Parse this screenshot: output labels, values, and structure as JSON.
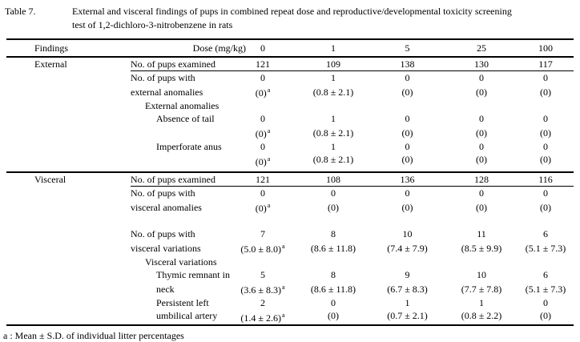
{
  "title": {
    "label": "Table 7.",
    "lines": [
      "External and visceral findings of pups in combined repeat dose and reproductive/developmental toxicity screening",
      "test of 1,2-dichloro-3-nitrobenzene in rats"
    ]
  },
  "table": {
    "header": {
      "findings": "Findings",
      "dose_label": "Dose (mg/kg)",
      "doses": [
        "0",
        "1",
        "5",
        "25",
        "100"
      ]
    },
    "footnote_marker": "a",
    "sections": [
      {
        "name": "External",
        "rows": [
          {
            "label": "No. of pups examined",
            "indent": 0,
            "rule_below": true,
            "values": [
              "121",
              "109",
              "138",
              "130",
              "117"
            ]
          },
          {
            "label": "No. of pups with",
            "indent": 0,
            "values": [
              "0",
              "1",
              "0",
              "0",
              "0"
            ]
          },
          {
            "label": "external anomalies",
            "indent": 0,
            "sup_first": true,
            "values": [
              "(0)",
              "(0.8 ± 2.1)",
              "(0)",
              "(0)",
              "(0)"
            ]
          },
          {
            "label": "External anomalies",
            "indent": 1,
            "values": [
              "",
              "",
              "",
              "",
              ""
            ]
          },
          {
            "label": "Absence of tail",
            "indent": 2,
            "values": [
              "0",
              "1",
              "0",
              "0",
              "0"
            ]
          },
          {
            "label": "",
            "indent": 0,
            "sup_first": true,
            "values": [
              "(0)",
              "(0.8 ± 2.1)",
              "(0)",
              "(0)",
              "(0)"
            ]
          },
          {
            "label": "Imperforate anus",
            "indent": 2,
            "values": [
              "0",
              "1",
              "0",
              "0",
              "0"
            ]
          },
          {
            "label": "",
            "indent": 0,
            "sup_first": true,
            "values": [
              "(0)",
              "(0.8 ± 2.1)",
              "(0)",
              "(0)",
              "(0)"
            ]
          }
        ]
      },
      {
        "name": "Visceral",
        "rows": [
          {
            "label": "No. of pups examined",
            "indent": 0,
            "rule_below": true,
            "values": [
              "121",
              "108",
              "136",
              "128",
              "116"
            ]
          },
          {
            "label": "No. of pups with",
            "indent": 0,
            "values": [
              "0",
              "0",
              "0",
              "0",
              "0"
            ]
          },
          {
            "label": "visceral anomalies",
            "indent": 0,
            "sup_first": true,
            "values": [
              "(0)",
              "(0)",
              "(0)",
              "(0)",
              "(0)"
            ]
          },
          {
            "label": "",
            "indent": 0,
            "values": [
              "",
              "",
              "",
              "",
              ""
            ]
          },
          {
            "label": "No. of pups with",
            "indent": 0,
            "values": [
              "7",
              "8",
              "10",
              "11",
              "6"
            ]
          },
          {
            "label": "visceral variations",
            "indent": 0,
            "sup_first": true,
            "values": [
              "(5.0 ± 8.0)",
              "(8.6 ± 11.8)",
              "(7.4 ± 7.9)",
              "(8.5 ± 9.9)",
              "(5.1 ± 7.3)"
            ]
          },
          {
            "label": "Visceral variations",
            "indent": 1,
            "values": [
              "",
              "",
              "",
              "",
              ""
            ]
          },
          {
            "label": "Thymic remnant in",
            "indent": 2,
            "values": [
              "5",
              "8",
              "9",
              "10",
              "6"
            ]
          },
          {
            "label": "neck",
            "indent": 2,
            "sup_first": true,
            "values": [
              "(3.6 ± 8.3)",
              "(8.6 ± 11.8)",
              "(6.7 ± 8.3)",
              "(7.7 ± 7.8)",
              "(5.1 ± 7.3)"
            ]
          },
          {
            "label": "Persistent left",
            "indent": 2,
            "values": [
              "2",
              "0",
              "1",
              "1",
              "0"
            ]
          },
          {
            "label": "umbilical artery",
            "indent": 2,
            "sup_first": true,
            "values": [
              "(1.4 ± 2.6)",
              "(0)",
              "(0.7 ± 2.1)",
              "(0.8 ± 2.2)",
              "(0)"
            ]
          }
        ]
      }
    ],
    "footnote": "a : Mean ± S.D. of individual litter percentages"
  }
}
